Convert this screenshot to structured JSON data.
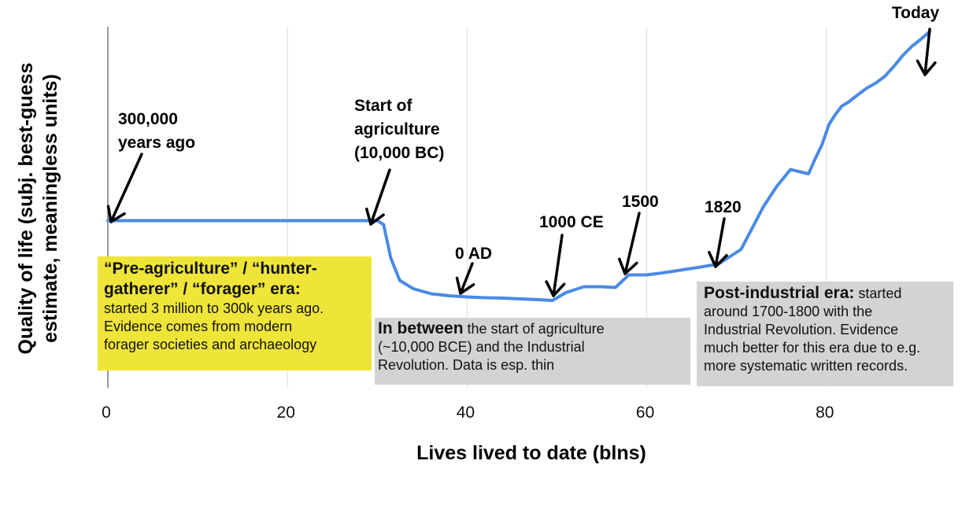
{
  "chart_data": {
    "type": "line",
    "title": "",
    "xlabel": "Lives lived to date (blns)",
    "ylabel": "Quality of life (subj. best-guess estimate, meaningless units)",
    "xlim": [
      0,
      96
    ],
    "ylim": [
      0,
      100
    ],
    "x_ticks": [
      "0",
      "20",
      "40",
      "60",
      "80"
    ],
    "grid": "vertical",
    "line_color": "#4a8ae6",
    "series": [
      {
        "x": [
          0,
          30,
          30.7,
          31.5,
          32.5,
          34,
          36,
          38,
          40,
          42,
          44,
          46,
          48,
          49.5,
          51,
          53,
          55,
          56.5,
          58,
          60,
          62,
          64,
          66,
          68,
          70.5,
          73,
          74.5,
          76,
          78,
          78.7,
          79.5,
          80.3,
          81,
          81.7,
          82.5,
          83.5,
          84.5,
          85.5,
          86.5,
          87.5,
          88.5,
          89.5,
          90.5,
          91.5
        ],
        "y": [
          42.5,
          42.5,
          41.5,
          33,
          27.3,
          25.2,
          23.9,
          23.4,
          23.1,
          22.9,
          22.8,
          22.6,
          22.4,
          22.2,
          24.2,
          25.7,
          25.7,
          25.5,
          28.7,
          28.7,
          29.3,
          30,
          30.7,
          31.5,
          35.2,
          46.1,
          51.3,
          55.5,
          54.4,
          58,
          61.8,
          67,
          69.5,
          71.6,
          72.7,
          74.5,
          76.2,
          77.5,
          79.2,
          81.7,
          84.5,
          86.8,
          88.6,
          90.6
        ]
      }
    ],
    "annotations": {
      "start": {
        "lines": [
          "300,000",
          "years ago"
        ],
        "x": 0,
        "y": 42.5
      },
      "agri": {
        "lines": [
          "Start of",
          "agriculture",
          "(10,000 BC)"
        ],
        "x": 30,
        "y": 42.5
      },
      "ad0": {
        "lines": [
          "0 AD"
        ],
        "x": 38,
        "y": 23.5
      },
      "ce1000": {
        "lines": [
          "1000 CE"
        ],
        "x": 49.5,
        "y": 22.2
      },
      "y1500": {
        "lines": [
          "1500"
        ],
        "x": 57.5,
        "y": 28
      },
      "y1820": {
        "lines": [
          "1820"
        ],
        "x": 67.5,
        "y": 31.3
      },
      "today": {
        "lines": [
          "Today"
        ],
        "x": 91.5,
        "y": 90.6
      }
    }
  },
  "boxes": {
    "pre": {
      "heading_1": "“Pre-agriculture” / “hunter-",
      "heading_2": "gatherer” / “forager” era:",
      "body_1": "started 3 million to 300k years ago.",
      "body_2": "Evidence comes from modern",
      "body_3": "forager societies and archaeology"
    },
    "mid": {
      "heading": "In between",
      "rest_1": " the start of agriculture",
      "body_2": "(~10,000 BCE) and the Industrial",
      "body_3": "Revolution. Data is esp. thin"
    },
    "post": {
      "heading": "Post-industrial era:",
      "rest_1": " started",
      "body_2": "around 1700-1800 with the",
      "body_3": "Industrial Revolution. Evidence",
      "body_4": "much better for this era due to e.g.",
      "body_5": "more systematic written records."
    }
  }
}
